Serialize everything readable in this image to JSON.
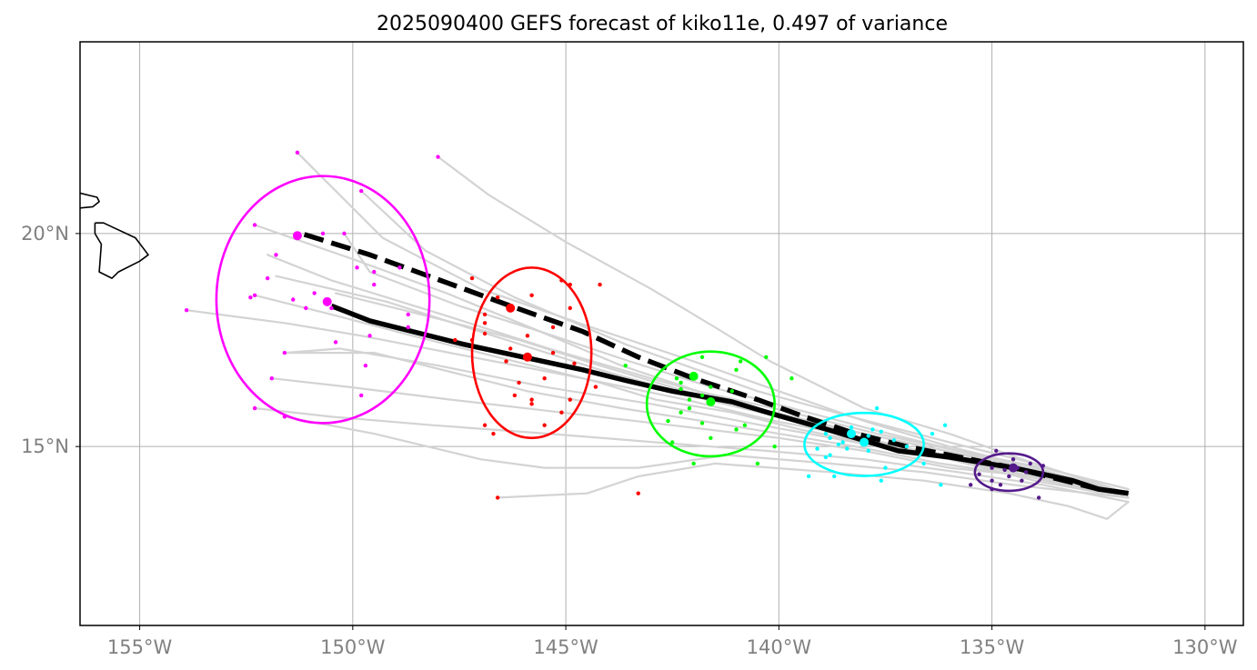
{
  "title": "2025090400 GEFS forecast of kiko11e, 0.497 of variance",
  "map": {
    "lon_range": [
      -156.4,
      -129.1
    ],
    "lat_range": [
      10.8,
      24.5
    ],
    "grid": true,
    "x_ticks": [
      {
        "lon": -155,
        "label": "155°W"
      },
      {
        "lon": -150,
        "label": "150°W"
      },
      {
        "lon": -145,
        "label": "145°W"
      },
      {
        "lon": -140,
        "label": "140°W"
      },
      {
        "lon": -135,
        "label": "135°W"
      },
      {
        "lon": -130,
        "label": "130°W"
      }
    ],
    "y_ticks": [
      {
        "lat": 20,
        "label": "20°N"
      },
      {
        "lat": 15,
        "label": "15°N"
      }
    ]
  },
  "colors": {
    "member_tracks": "#d3d3d3",
    "mean_track": "#000000",
    "frame": "#000000",
    "grid": "#b0b0b0",
    "coast": "#000000"
  },
  "coastlines": [
    [
      [
        -156.05,
        20.25
      ],
      [
        -155.85,
        20.25
      ],
      [
        -155.1,
        19.9
      ],
      [
        -154.8,
        19.5
      ],
      [
        -155.0,
        19.35
      ],
      [
        -155.5,
        19.1
      ],
      [
        -155.65,
        18.95
      ],
      [
        -155.95,
        19.1
      ],
      [
        -155.9,
        19.75
      ],
      [
        -156.05,
        20.0
      ],
      [
        -156.05,
        20.25
      ]
    ],
    [
      [
        -156.4,
        20.95
      ],
      [
        -156.0,
        20.85
      ],
      [
        -155.95,
        20.75
      ],
      [
        -156.1,
        20.63
      ],
      [
        -156.4,
        20.6
      ]
    ]
  ],
  "mean_tracks": [
    {
      "style": "solid",
      "points": [
        [
          -131.8,
          13.9
        ],
        [
          -132.5,
          14.0
        ],
        [
          -133.1,
          14.2
        ],
        [
          -134.5,
          14.5
        ],
        [
          -136,
          14.75
        ],
        [
          -137.2,
          14.9
        ],
        [
          -138.2,
          15.2
        ],
        [
          -139.2,
          15.5
        ],
        [
          -140.1,
          15.75
        ],
        [
          -141.1,
          16.05
        ],
        [
          -142.5,
          16.3
        ],
        [
          -143.6,
          16.55
        ],
        [
          -144.6,
          16.8
        ],
        [
          -146.0,
          17.1
        ],
        [
          -147.4,
          17.4
        ],
        [
          -148.4,
          17.65
        ],
        [
          -149.6,
          17.95
        ],
        [
          -150.5,
          18.3
        ]
      ]
    },
    {
      "style": "dashed",
      "points": [
        [
          -131.8,
          13.9
        ],
        [
          -132.5,
          14.0
        ],
        [
          -133.1,
          14.15
        ],
        [
          -134.5,
          14.5
        ],
        [
          -136,
          14.8
        ],
        [
          -137,
          15.0
        ],
        [
          -138.2,
          15.3
        ],
        [
          -139.4,
          15.7
        ],
        [
          -140.5,
          16.1
        ],
        [
          -142.0,
          16.6
        ],
        [
          -143.3,
          17.1
        ],
        [
          -144.6,
          17.7
        ],
        [
          -146.3,
          18.3
        ],
        [
          -147.8,
          18.85
        ],
        [
          -149.6,
          19.5
        ],
        [
          -151.2,
          20.0
        ]
      ]
    }
  ],
  "mean_positions": [
    {
      "color": "#ff00ff",
      "lon": -150.6,
      "lat": 18.4
    },
    {
      "color": "#ff00ff",
      "lon": -151.3,
      "lat": 19.95
    },
    {
      "color": "#ff0000",
      "lon": -145.9,
      "lat": 17.1
    },
    {
      "color": "#ff0000",
      "lon": -146.3,
      "lat": 18.25
    },
    {
      "color": "#00ff00",
      "lon": -141.6,
      "lat": 16.05
    },
    {
      "color": "#00ff00",
      "lon": -142.0,
      "lat": 16.65
    },
    {
      "color": "#00ffff",
      "lon": -138.0,
      "lat": 15.1
    },
    {
      "color": "#00ffff",
      "lon": -138.3,
      "lat": 15.3
    },
    {
      "color": "#551a8b",
      "lon": -134.5,
      "lat": 14.5
    }
  ],
  "uncertainty_ellipses": [
    {
      "color": "#ff00ff",
      "center_lon": -150.7,
      "center_lat": 18.45,
      "radius_lon": 2.5,
      "radius_lat": 2.9
    },
    {
      "color": "#ff0000",
      "center_lon": -145.8,
      "center_lat": 17.2,
      "radius_lon": 1.4,
      "radius_lat": 2.0
    },
    {
      "color": "#00ff00",
      "center_lon": -141.6,
      "center_lat": 16.0,
      "radius_lon": 1.5,
      "radius_lat": 1.23
    },
    {
      "color": "#00ffff",
      "center_lon": -138.0,
      "center_lat": 15.05,
      "radius_lon": 1.4,
      "radius_lat": 0.74
    },
    {
      "color": "#551a8b",
      "center_lon": -134.6,
      "center_lat": 14.4,
      "radius_lon": 0.8,
      "radius_lat": 0.44
    }
  ],
  "member_tracks": [
    [
      [
        -131.8,
        13.9
      ],
      [
        -134,
        14.4
      ],
      [
        -136,
        14.8
      ],
      [
        -138,
        15.1
      ],
      [
        -139.5,
        15.4
      ],
      [
        -141.1,
        15.8
      ],
      [
        -142.9,
        16.1
      ],
      [
        -144.2,
        16.5
      ],
      [
        -146.6,
        17.1
      ],
      [
        -148.6,
        17.6
      ],
      [
        -150.5,
        18.1
      ],
      [
        -152.3,
        18.55
      ]
    ],
    [
      [
        -131.8,
        13.8
      ],
      [
        -134.2,
        14.3
      ],
      [
        -136.2,
        14.6
      ],
      [
        -138.2,
        15.0
      ],
      [
        -140,
        15.3
      ],
      [
        -141.8,
        15.6
      ],
      [
        -143.7,
        15.9
      ],
      [
        -145.9,
        16.3
      ],
      [
        -147.5,
        16.7
      ],
      [
        -149.5,
        17.2
      ],
      [
        -151.6,
        17.2
      ]
    ],
    [
      [
        -131.8,
        13.9
      ],
      [
        -134,
        14.6
      ],
      [
        -136,
        15.1
      ],
      [
        -138.3,
        15.7
      ],
      [
        -140.5,
        16.3
      ],
      [
        -143.6,
        17.4
      ],
      [
        -146.2,
        18.5
      ],
      [
        -148.3,
        19.6
      ],
      [
        -149.8,
        21.0
      ]
    ],
    [
      [
        -131.8,
        13.9
      ],
      [
        -134,
        14.6
      ],
      [
        -136,
        15.3
      ],
      [
        -138,
        15.9
      ],
      [
        -140.2,
        17.0
      ],
      [
        -141.5,
        17.8
      ],
      [
        -143,
        18.7
      ],
      [
        -145,
        19.8
      ],
      [
        -146.8,
        20.9
      ],
      [
        -148,
        21.8
      ]
    ],
    [
      [
        -131.8,
        13.9
      ],
      [
        -134,
        14.5
      ],
      [
        -136,
        15.0
      ],
      [
        -138,
        15.6
      ],
      [
        -140,
        16.3
      ],
      [
        -142,
        17.0
      ],
      [
        -144.4,
        17.8
      ],
      [
        -147,
        18.7
      ],
      [
        -149.3,
        19.9
      ],
      [
        -151.3,
        21.9
      ]
    ],
    [
      [
        -131.8,
        14.0
      ],
      [
        -133.8,
        14.5
      ],
      [
        -135.8,
        14.9
      ],
      [
        -137.7,
        15.3
      ],
      [
        -139.7,
        15.8
      ],
      [
        -141.9,
        16.3
      ],
      [
        -143.7,
        16.9
      ],
      [
        -145.6,
        17.7
      ],
      [
        -147.8,
        18.6
      ],
      [
        -150,
        19.4
      ],
      [
        -152.3,
        20.2
      ]
    ],
    [
      [
        -131.8,
        13.9
      ],
      [
        -133.8,
        14.4
      ],
      [
        -135.6,
        14.8
      ],
      [
        -137.5,
        15.2
      ],
      [
        -139.6,
        15.6
      ],
      [
        -141.7,
        16.1
      ],
      [
        -144.2,
        16.8
      ],
      [
        -146.7,
        17.6
      ],
      [
        -149.2,
        18.4
      ],
      [
        -151.8,
        19.0
      ]
    ],
    [
      [
        -131.8,
        13.8
      ],
      [
        -134,
        14.3
      ],
      [
        -136,
        14.5
      ],
      [
        -138,
        14.9
      ],
      [
        -140,
        15.2
      ],
      [
        -142.5,
        15.5
      ],
      [
        -145.1,
        15.8
      ],
      [
        -147.7,
        16.1
      ],
      [
        -150.1,
        16.4
      ],
      [
        -151.9,
        16.6
      ]
    ],
    [
      [
        -131.8,
        13.7
      ],
      [
        -133.8,
        14.1
      ],
      [
        -135.8,
        14.4
      ],
      [
        -138,
        14.7
      ],
      [
        -140.3,
        14.9
      ],
      [
        -142.9,
        15.1
      ],
      [
        -145.4,
        15.3
      ],
      [
        -148.1,
        15.5
      ],
      [
        -150.5,
        15.7
      ],
      [
        -152.3,
        15.9
      ]
    ],
    [
      [
        -131.8,
        13.9
      ],
      [
        -134,
        14.3
      ],
      [
        -136,
        14.7
      ],
      [
        -138,
        15.2
      ],
      [
        -140.1,
        15.6
      ],
      [
        -142.2,
        16.1
      ],
      [
        -144.6,
        16.6
      ],
      [
        -147.2,
        17.1
      ],
      [
        -149.8,
        17.6
      ],
      [
        -151.6,
        17.9
      ],
      [
        -153.9,
        18.2
      ]
    ],
    [
      [
        -131.8,
        13.8
      ],
      [
        -134,
        14.2
      ],
      [
        -136,
        14.7
      ],
      [
        -138.2,
        15.1
      ],
      [
        -140.4,
        15.5
      ],
      [
        -143,
        16.0
      ],
      [
        -145.5,
        16.4
      ],
      [
        -148,
        16.9
      ],
      [
        -150.3,
        17.3
      ],
      [
        -151.6,
        17.2
      ]
    ],
    [
      [
        -131.8,
        13.9
      ],
      [
        -134.1,
        14.3
      ],
      [
        -136.3,
        14.8
      ],
      [
        -138.4,
        15.3
      ],
      [
        -140.5,
        15.9
      ],
      [
        -143,
        16.6
      ],
      [
        -145.4,
        17.3
      ],
      [
        -147.9,
        18.1
      ],
      [
        -150.5,
        18.9
      ],
      [
        -152.0,
        19.5
      ]
    ],
    [
      [
        -131.8,
        13.7
      ],
      [
        -132.3,
        13.3
      ],
      [
        -133.2,
        13.6
      ],
      [
        -134.6,
        13.9
      ],
      [
        -136.6,
        14.2
      ],
      [
        -138.8,
        14.4
      ],
      [
        -141.5,
        14.6
      ],
      [
        -143.3,
        14.3
      ],
      [
        -144.5,
        13.9
      ],
      [
        -146.6,
        13.8
      ]
    ],
    [
      [
        -131.8,
        13.8
      ],
      [
        -134.5,
        14.1
      ],
      [
        -136.6,
        14.4
      ],
      [
        -138.8,
        14.6
      ],
      [
        -141.2,
        14.8
      ],
      [
        -143.3,
        14.5
      ],
      [
        -145.5,
        14.5
      ],
      [
        -147,
        14.7
      ],
      [
        -149.5,
        15.3
      ],
      [
        -151.6,
        15.7
      ]
    ],
    [
      [
        -131.8,
        13.9
      ],
      [
        -134,
        14.4
      ],
      [
        -136.1,
        14.9
      ],
      [
        -138,
        15.3
      ],
      [
        -140.1,
        15.8
      ],
      [
        -142.2,
        16.3
      ],
      [
        -144.2,
        16.9
      ],
      [
        -146.1,
        17.5
      ],
      [
        -148,
        18.0
      ],
      [
        -150.4,
        18.6
      ]
    ],
    [
      [
        -131.8,
        13.9
      ],
      [
        -133.8,
        14.4
      ],
      [
        -135.8,
        14.9
      ],
      [
        -137.8,
        15.4
      ],
      [
        -139.7,
        15.9
      ],
      [
        -141.6,
        16.4
      ],
      [
        -143.5,
        17.0
      ],
      [
        -145.6,
        17.7
      ],
      [
        -147.5,
        18.3
      ],
      [
        -149.6,
        19.1
      ],
      [
        -150.2,
        20.0
      ]
    ]
  ],
  "member_points": [
    {
      "color": "#ff00ff",
      "points": [
        [
          -151.3,
          21.9
        ],
        [
          -148,
          21.8
        ],
        [
          -149.8,
          21.0
        ],
        [
          -152.3,
          20.2
        ],
        [
          -150.2,
          20.0
        ],
        [
          -150.7,
          20.0
        ],
        [
          -151.8,
          19.5
        ],
        [
          -149.9,
          19.2
        ],
        [
          -149.5,
          19.1
        ],
        [
          -148.9,
          19.2
        ],
        [
          -152.0,
          18.95
        ],
        [
          -149.5,
          18.8
        ],
        [
          -150.9,
          18.6
        ],
        [
          -152.3,
          18.55
        ],
        [
          -152.4,
          18.5
        ],
        [
          -151.4,
          18.45
        ],
        [
          -151.1,
          18.25
        ],
        [
          -150.5,
          18.25
        ],
        [
          -153.9,
          18.2
        ],
        [
          -148.7,
          18.1
        ],
        [
          -148.7,
          17.8
        ],
        [
          -149.6,
          17.6
        ],
        [
          -150.4,
          17.45
        ],
        [
          -151.6,
          17.2
        ],
        [
          -149.7,
          16.9
        ],
        [
          -151.9,
          16.6
        ],
        [
          -149.8,
          16.2
        ],
        [
          -152.3,
          15.9
        ],
        [
          -151.6,
          15.7
        ]
      ]
    },
    {
      "color": "#ff0000",
      "points": [
        [
          -147.2,
          18.95
        ],
        [
          -145.1,
          18.9
        ],
        [
          -144.9,
          18.8
        ],
        [
          -144.2,
          18.8
        ],
        [
          -145.8,
          18.55
        ],
        [
          -146.6,
          18.5
        ],
        [
          -144.9,
          18.25
        ],
        [
          -146.9,
          18.1
        ],
        [
          -146.9,
          17.9
        ],
        [
          -145.3,
          17.8
        ],
        [
          -146.9,
          17.65
        ],
        [
          -145.9,
          17.6
        ],
        [
          -147.6,
          17.5
        ],
        [
          -147.2,
          17.5
        ],
        [
          -146.3,
          17.3
        ],
        [
          -145.3,
          17.2
        ],
        [
          -146.4,
          17.0
        ],
        [
          -144.8,
          16.95
        ],
        [
          -145.5,
          16.6
        ],
        [
          -146.1,
          16.5
        ],
        [
          -144.3,
          16.4
        ],
        [
          -146.2,
          16.2
        ],
        [
          -144.9,
          16.1
        ],
        [
          -145.8,
          16.1
        ],
        [
          -145.8,
          16.0
        ],
        [
          -145.1,
          15.8
        ],
        [
          -146.9,
          15.5
        ],
        [
          -145.5,
          15.5
        ],
        [
          -146.7,
          15.3
        ],
        [
          -143.3,
          13.9
        ],
        [
          -146.6,
          13.8
        ]
      ]
    },
    {
      "color": "#00ff00",
      "points": [
        [
          -140.3,
          17.1
        ],
        [
          -141.8,
          17.1
        ],
        [
          -140.9,
          17.0
        ],
        [
          -143.6,
          16.9
        ],
        [
          -141,
          16.8
        ],
        [
          -139.7,
          16.6
        ],
        [
          -142.4,
          16.6
        ],
        [
          -142.3,
          16.5
        ],
        [
          -141.6,
          16.4
        ],
        [
          -142.3,
          16.35
        ],
        [
          -141.1,
          16.3
        ],
        [
          -141.8,
          16.2
        ],
        [
          -142.1,
          16.1
        ],
        [
          -142.1,
          15.9
        ],
        [
          -142.3,
          15.8
        ],
        [
          -142.6,
          15.6
        ],
        [
          -141.8,
          15.55
        ],
        [
          -140.8,
          15.5
        ],
        [
          -141.0,
          15.4
        ],
        [
          -142.5,
          15.1
        ],
        [
          -141.6,
          15.2
        ],
        [
          -140.1,
          15.0
        ],
        [
          -142.0,
          14.6
        ],
        [
          -140.5,
          14.6
        ]
      ]
    },
    {
      "color": "#00ffff",
      "points": [
        [
          -137.7,
          15.9
        ],
        [
          -136.1,
          15.5
        ],
        [
          -137.8,
          15.4
        ],
        [
          -138.3,
          15.45
        ],
        [
          -137.6,
          15.35
        ],
        [
          -138.9,
          15.3
        ],
        [
          -136.4,
          15.3
        ],
        [
          -137.9,
          15.25
        ],
        [
          -138.8,
          15.2
        ],
        [
          -137.3,
          15.15
        ],
        [
          -138.6,
          15.05
        ],
        [
          -138.5,
          15.1
        ],
        [
          -137.0,
          15.0
        ],
        [
          -139.1,
          14.95
        ],
        [
          -138.4,
          14.95
        ],
        [
          -137.9,
          14.9
        ],
        [
          -138.8,
          14.8
        ],
        [
          -138.9,
          14.75
        ],
        [
          -136.6,
          14.6
        ],
        [
          -137.5,
          14.5
        ],
        [
          -139.3,
          14.3
        ],
        [
          -138.7,
          14.3
        ],
        [
          -137.6,
          14.2
        ],
        [
          -136.2,
          14.1
        ]
      ]
    },
    {
      "color": "#551a8b",
      "points": [
        [
          -134.9,
          14.9
        ],
        [
          -134.5,
          14.7
        ],
        [
          -134.1,
          14.6
        ],
        [
          -133.8,
          14.55
        ],
        [
          -134.4,
          14.5
        ],
        [
          -135,
          14.5
        ],
        [
          -134.7,
          14.45
        ],
        [
          -134.2,
          14.4
        ],
        [
          -135.3,
          14.35
        ],
        [
          -134.6,
          14.3
        ],
        [
          -135.0,
          14.2
        ],
        [
          -134.3,
          14.2
        ],
        [
          -135.5,
          14.1
        ],
        [
          -134.8,
          14.1
        ],
        [
          -135.0,
          14.0
        ],
        [
          -133.9,
          13.8
        ]
      ]
    }
  ]
}
